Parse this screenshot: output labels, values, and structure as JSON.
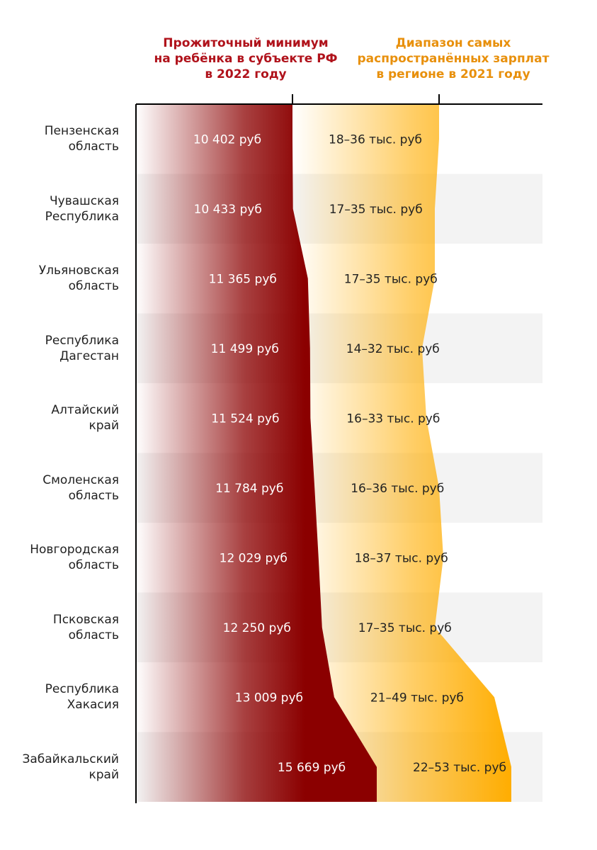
{
  "headers": {
    "minimum": {
      "lines": [
        "Прожиточный минимум",
        "на ребёнка в субъекте РФ",
        "в 2022 году"
      ],
      "color": "#b0121b"
    },
    "salary": {
      "lines": [
        "Диапазон самых",
        "распространённых зарплат",
        "в регионе в 2021 году"
      ],
      "color": "#e8900c"
    }
  },
  "colors": {
    "minimum_dark": "#8b0000",
    "salary_orange": "#ffad00",
    "row_alt": "#f3f3f3",
    "value_text_light": "#ffffff",
    "value_text_dark": "#222222"
  },
  "chart_data": {
    "type": "table",
    "rows": [
      {
        "region": [
          "Пензенская",
          "область"
        ],
        "minimum": 10402,
        "minimum_label": "10 402 руб",
        "salary_min": 18,
        "salary_max": 36,
        "salary_label": "18–36 тыс. руб"
      },
      {
        "region": [
          "Чувашская",
          "Республика"
        ],
        "minimum": 10433,
        "minimum_label": "10 433 руб",
        "salary_min": 17,
        "salary_max": 35,
        "salary_label": "17–35 тыс. руб"
      },
      {
        "region": [
          "Ульяновская",
          "область"
        ],
        "minimum": 11365,
        "minimum_label": "11 365 руб",
        "salary_min": 17,
        "salary_max": 35,
        "salary_label": "17–35 тыс. руб"
      },
      {
        "region": [
          "Республика",
          "Дагестан"
        ],
        "minimum": 11499,
        "minimum_label": "11 499 руб",
        "salary_min": 14,
        "salary_max": 32,
        "salary_label": "14–32 тыс. руб"
      },
      {
        "region": [
          "Алтайский",
          "край"
        ],
        "minimum": 11524,
        "minimum_label": "11 524 руб",
        "salary_min": 16,
        "salary_max": 33,
        "salary_label": "16–33 тыс. руб"
      },
      {
        "region": [
          "Смоленская",
          "область"
        ],
        "minimum": 11784,
        "minimum_label": "11 784 руб",
        "salary_min": 16,
        "salary_max": 36,
        "salary_label": "16–36 тыс. руб"
      },
      {
        "region": [
          "Новгородская",
          "область"
        ],
        "minimum": 12029,
        "minimum_label": "12 029 руб",
        "salary_min": 18,
        "salary_max": 37,
        "salary_label": "18–37 тыс. руб"
      },
      {
        "region": [
          "Псковская",
          "область"
        ],
        "minimum": 12250,
        "minimum_label": "12 250 руб",
        "salary_min": 17,
        "salary_max": 35,
        "salary_label": "17–35 тыс. руб"
      },
      {
        "region": [
          "Республика",
          "Хакасия"
        ],
        "minimum": 13009,
        "minimum_label": "13 009 руб",
        "salary_min": 21,
        "salary_max": 49,
        "salary_label": "21–49 тыс. руб"
      },
      {
        "region": [
          "Забайкальский",
          "край"
        ],
        "minimum": 15669,
        "minimum_label": "15 669 руб",
        "salary_min": 22,
        "salary_max": 53,
        "salary_label": "22–53 тыс. руб"
      }
    ]
  }
}
